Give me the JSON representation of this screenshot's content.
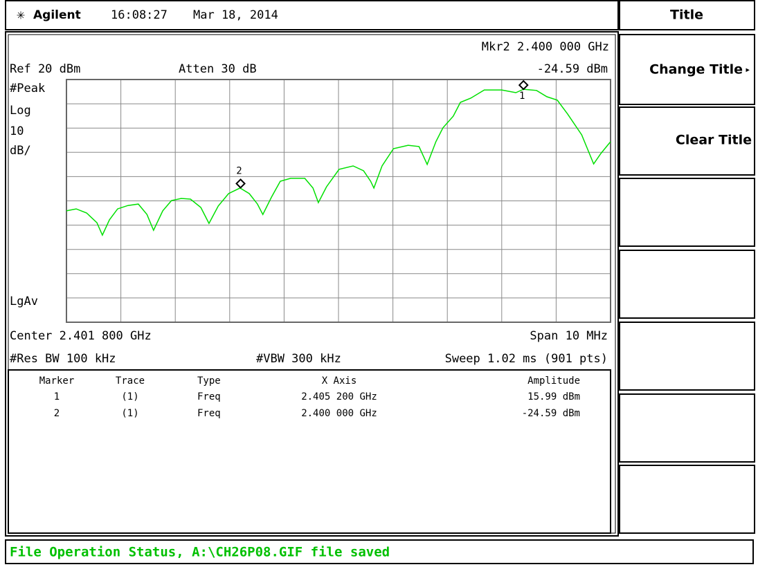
{
  "header": {
    "brand": "Agilent",
    "time": "16:08:27",
    "date": "Mar 18, 2014"
  },
  "status": {
    "marker_readout": "Mkr2  2.400 000 GHz",
    "ref": "Ref 20 dBm",
    "atten": "Atten 30 dB",
    "marker_amplitude": "-24.59 dBm",
    "left_labels": [
      "#Peak",
      "Log",
      "10",
      "dB/"
    ],
    "average": "LgAv",
    "center": "Center 2.401 800 GHz",
    "span": "Span 10 MHz",
    "rbw": "#Res BW 100 kHz",
    "vbw": "#VBW 300 kHz",
    "sweep": "Sweep 1.02 ms (901 pts)"
  },
  "chart_data": {
    "type": "line",
    "color": "#00e000",
    "xlim": [
      2.3968,
      2.4068
    ],
    "ylim": [
      -80,
      20
    ],
    "grid": true,
    "x": [
      2.3968,
      2.39698,
      2.39717,
      2.39736,
      2.39746,
      2.39759,
      2.39774,
      2.39793,
      2.39812,
      2.39828,
      2.3984,
      2.39857,
      2.39873,
      2.39891,
      2.39908,
      2.39927,
      2.39942,
      2.39959,
      2.39978,
      2.39999,
      2.40016,
      2.40031,
      2.40041,
      2.40057,
      2.40073,
      2.40092,
      2.40118,
      2.40133,
      2.40143,
      2.40158,
      2.40181,
      2.40207,
      2.40226,
      2.40239,
      2.40245,
      2.4026,
      2.40281,
      2.40308,
      2.40328,
      2.40343,
      2.40359,
      2.40372,
      2.40391,
      2.40404,
      2.40423,
      2.40448,
      2.4048,
      2.40506,
      2.4052,
      2.40544,
      2.40563,
      2.40582,
      2.40601,
      2.40627,
      2.40649,
      2.40662,
      2.4068
    ],
    "values": [
      -34.1,
      -33.3,
      -35.0,
      -39.0,
      -44.1,
      -37.8,
      -33.3,
      -31.9,
      -31.3,
      -35.6,
      -42.1,
      -34.1,
      -29.9,
      -29.0,
      -29.3,
      -32.7,
      -39.3,
      -32.1,
      -27.0,
      -24.7,
      -27.0,
      -31.3,
      -35.6,
      -28.4,
      -21.9,
      -20.7,
      -20.7,
      -24.7,
      -30.7,
      -24.2,
      -17.0,
      -15.6,
      -17.6,
      -21.9,
      -24.7,
      -15.6,
      -8.5,
      -7.1,
      -7.6,
      -15.0,
      -5.6,
      0.1,
      4.9,
      10.6,
      12.3,
      15.7,
      15.7,
      14.6,
      15.99,
      15.5,
      12.9,
      11.5,
      5.8,
      -2.8,
      -14.8,
      -10.5,
      -5.6
    ],
    "markers": {
      "labels": [
        "1",
        "2"
      ],
      "x": [
        2.4052,
        2.4
      ],
      "values": [
        15.99,
        -24.59
      ]
    }
  },
  "marker_table": {
    "columns": [
      "Marker",
      "Trace",
      "Type",
      "X Axis",
      "Amplitude"
    ],
    "rows": [
      [
        "1",
        "(1)",
        "Freq",
        "2.405 200 GHz",
        "15.99 dBm"
      ],
      [
        "2",
        "(1)",
        "Freq",
        "2.400 000 GHz",
        "-24.59 dBm"
      ]
    ]
  },
  "softkeys": {
    "title": "Title",
    "keys": [
      "Change Title",
      "Clear Title"
    ]
  },
  "message": "File Operation Status, A:\\CH26P08.GIF file saved"
}
